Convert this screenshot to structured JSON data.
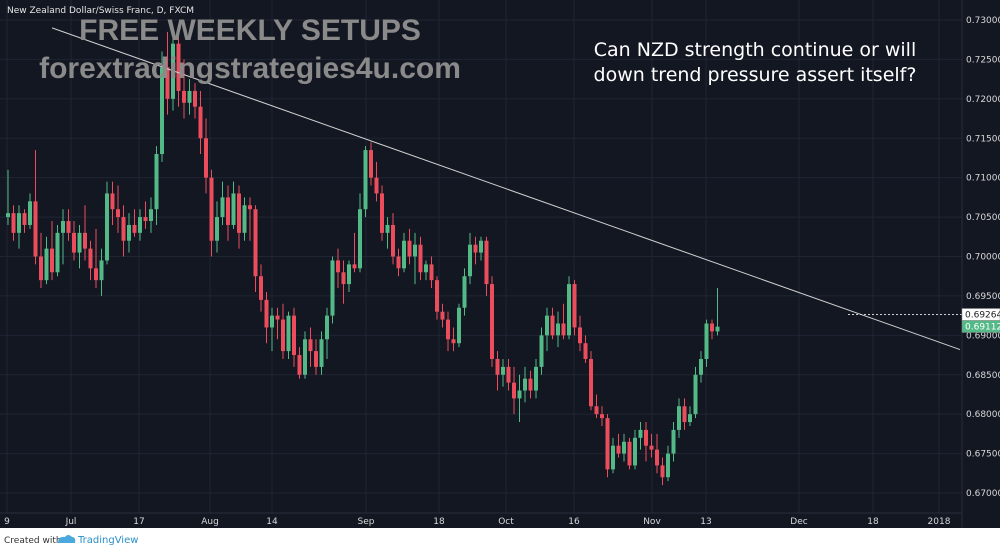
{
  "chart_data": {
    "type": "candlestick",
    "symbol_title": "New Zealand Dollar/Swiss Franc, D, FXCM",
    "ylim": [
      0.668,
      0.7315
    ],
    "y_ticks": [
      "0.73000",
      "0.72500",
      "0.72000",
      "0.71500",
      "0.71000",
      "0.70500",
      "0.70000",
      "0.69500",
      "0.69000",
      "0.68500",
      "0.68000",
      "0.67500",
      "0.67000"
    ],
    "x_ticks": [
      "9",
      "Jul",
      "17",
      "Aug",
      "14",
      "Sep",
      "18",
      "Oct",
      "16",
      "Nov",
      "13",
      "Dec",
      "18",
      "2018"
    ],
    "candles": [
      [
        0.705,
        0.711,
        0.704,
        0.7055
      ],
      [
        0.7055,
        0.7065,
        0.702,
        0.703
      ],
      [
        0.703,
        0.7065,
        0.701,
        0.7055
      ],
      [
        0.7055,
        0.706,
        0.703,
        0.704
      ],
      [
        0.704,
        0.708,
        0.7035,
        0.707
      ],
      [
        0.707,
        0.7135,
        0.699,
        0.7
      ],
      [
        0.7,
        0.703,
        0.696,
        0.697
      ],
      [
        0.697,
        0.7025,
        0.6965,
        0.701
      ],
      [
        0.701,
        0.7045,
        0.697,
        0.698
      ],
      [
        0.698,
        0.704,
        0.6975,
        0.703
      ],
      [
        0.703,
        0.706,
        0.699,
        0.7045
      ],
      [
        0.7045,
        0.706,
        0.702,
        0.703
      ],
      [
        0.703,
        0.7045,
        0.6995,
        0.7005
      ],
      [
        0.7005,
        0.704,
        0.6985,
        0.703
      ],
      [
        0.703,
        0.7065,
        0.6995,
        0.701
      ],
      [
        0.701,
        0.702,
        0.697,
        0.6985
      ],
      [
        0.6985,
        0.7035,
        0.696,
        0.697
      ],
      [
        0.697,
        0.701,
        0.695,
        0.6995
      ],
      [
        0.6995,
        0.7095,
        0.699,
        0.708
      ],
      [
        0.708,
        0.7095,
        0.704,
        0.706
      ],
      [
        0.706,
        0.709,
        0.703,
        0.705
      ],
      [
        0.705,
        0.7065,
        0.7,
        0.702
      ],
      [
        0.702,
        0.7055,
        0.7005,
        0.704
      ],
      [
        0.704,
        0.706,
        0.7025,
        0.703
      ],
      [
        0.703,
        0.706,
        0.702,
        0.705
      ],
      [
        0.705,
        0.707,
        0.7035,
        0.7045
      ],
      [
        0.7045,
        0.7075,
        0.703,
        0.706
      ],
      [
        0.706,
        0.714,
        0.704,
        0.713
      ],
      [
        0.713,
        0.726,
        0.712,
        0.724
      ],
      [
        0.724,
        0.7285,
        0.718,
        0.72
      ],
      [
        0.72,
        0.729,
        0.7185,
        0.727
      ],
      [
        0.727,
        0.7295,
        0.719,
        0.721
      ],
      [
        0.721,
        0.725,
        0.7175,
        0.7195
      ],
      [
        0.7195,
        0.7225,
        0.718,
        0.721
      ],
      [
        0.721,
        0.722,
        0.7175,
        0.719
      ],
      [
        0.719,
        0.721,
        0.713,
        0.715
      ],
      [
        0.715,
        0.7175,
        0.708,
        0.71
      ],
      [
        0.71,
        0.711,
        0.7,
        0.702
      ],
      [
        0.702,
        0.707,
        0.7005,
        0.705
      ],
      [
        0.705,
        0.7095,
        0.704,
        0.7075
      ],
      [
        0.7075,
        0.709,
        0.702,
        0.704
      ],
      [
        0.704,
        0.7095,
        0.7035,
        0.708
      ],
      [
        0.708,
        0.709,
        0.701,
        0.703
      ],
      [
        0.703,
        0.7075,
        0.702,
        0.7065
      ],
      [
        0.7065,
        0.7075,
        0.702,
        0.706
      ],
      [
        0.706,
        0.7065,
        0.6955,
        0.6975
      ],
      [
        0.6975,
        0.699,
        0.693,
        0.6945
      ],
      [
        0.6945,
        0.6955,
        0.689,
        0.691
      ],
      [
        0.691,
        0.6935,
        0.688,
        0.6925
      ],
      [
        0.6925,
        0.6935,
        0.6895,
        0.692
      ],
      [
        0.692,
        0.694,
        0.687,
        0.688
      ],
      [
        0.688,
        0.693,
        0.687,
        0.6925
      ],
      [
        0.6925,
        0.6935,
        0.686,
        0.6875
      ],
      [
        0.6875,
        0.6885,
        0.6845,
        0.685
      ],
      [
        0.685,
        0.6905,
        0.6845,
        0.6895
      ],
      [
        0.6895,
        0.691,
        0.686,
        0.688
      ],
      [
        0.688,
        0.6895,
        0.685,
        0.686
      ],
      [
        0.686,
        0.6905,
        0.685,
        0.6895
      ],
      [
        0.6895,
        0.6935,
        0.687,
        0.6925
      ],
      [
        0.6925,
        0.7,
        0.6915,
        0.6995
      ],
      [
        0.6995,
        0.701,
        0.696,
        0.698
      ],
      [
        0.698,
        0.6995,
        0.694,
        0.6965
      ],
      [
        0.6965,
        0.6995,
        0.6955,
        0.699
      ],
      [
        0.699,
        0.703,
        0.698,
        0.6985
      ],
      [
        0.6985,
        0.708,
        0.698,
        0.706
      ],
      [
        0.706,
        0.714,
        0.705,
        0.7135
      ],
      [
        0.7135,
        0.7145,
        0.709,
        0.71
      ],
      [
        0.71,
        0.712,
        0.707,
        0.708
      ],
      [
        0.708,
        0.709,
        0.702,
        0.703
      ],
      [
        0.703,
        0.705,
        0.701,
        0.704
      ],
      [
        0.704,
        0.7055,
        0.699,
        0.7
      ],
      [
        0.7,
        0.701,
        0.6975,
        0.6985
      ],
      [
        0.6985,
        0.703,
        0.698,
        0.702
      ],
      [
        0.702,
        0.7035,
        0.699,
        0.7
      ],
      [
        0.7,
        0.703,
        0.6965,
        0.7015
      ],
      [
        0.7015,
        0.7025,
        0.697,
        0.698
      ],
      [
        0.698,
        0.6995,
        0.697,
        0.699
      ],
      [
        0.699,
        0.7,
        0.696,
        0.697
      ],
      [
        0.697,
        0.6975,
        0.692,
        0.693
      ],
      [
        0.693,
        0.694,
        0.691,
        0.692
      ],
      [
        0.692,
        0.693,
        0.688,
        0.6895
      ],
      [
        0.6895,
        0.691,
        0.688,
        0.689
      ],
      [
        0.689,
        0.694,
        0.6885,
        0.6935
      ],
      [
        0.6935,
        0.6985,
        0.6925,
        0.6975
      ],
      [
        0.6975,
        0.703,
        0.6965,
        0.7015
      ],
      [
        0.7015,
        0.7025,
        0.699,
        0.7005
      ],
      [
        0.7005,
        0.7025,
        0.6995,
        0.702
      ],
      [
        0.702,
        0.7025,
        0.695,
        0.6965
      ],
      [
        0.6965,
        0.6975,
        0.686,
        0.687
      ],
      [
        0.687,
        0.688,
        0.683,
        0.685
      ],
      [
        0.685,
        0.687,
        0.6835,
        0.686
      ],
      [
        0.686,
        0.687,
        0.683,
        0.684
      ],
      [
        0.684,
        0.686,
        0.68,
        0.682
      ],
      [
        0.682,
        0.685,
        0.679,
        0.683
      ],
      [
        0.683,
        0.686,
        0.6815,
        0.6845
      ],
      [
        0.6845,
        0.6855,
        0.682,
        0.683
      ],
      [
        0.683,
        0.687,
        0.682,
        0.686
      ],
      [
        0.686,
        0.691,
        0.685,
        0.69
      ],
      [
        0.69,
        0.6935,
        0.688,
        0.6925
      ],
      [
        0.6925,
        0.6935,
        0.6895,
        0.69
      ],
      [
        0.69,
        0.693,
        0.6885,
        0.6915
      ],
      [
        0.6915,
        0.694,
        0.6895,
        0.69
      ],
      [
        0.69,
        0.6975,
        0.6895,
        0.6965
      ],
      [
        0.6965,
        0.697,
        0.69,
        0.691
      ],
      [
        0.691,
        0.6925,
        0.688,
        0.689
      ],
      [
        0.689,
        0.69,
        0.6865,
        0.687
      ],
      [
        0.687,
        0.688,
        0.6805,
        0.681
      ],
      [
        0.681,
        0.6825,
        0.6795,
        0.68
      ],
      [
        0.68,
        0.681,
        0.6785,
        0.6795
      ],
      [
        0.6795,
        0.68,
        0.672,
        0.673
      ],
      [
        0.673,
        0.677,
        0.6725,
        0.676
      ],
      [
        0.676,
        0.6775,
        0.6745,
        0.675
      ],
      [
        0.675,
        0.6775,
        0.674,
        0.6765
      ],
      [
        0.6765,
        0.677,
        0.673,
        0.6735
      ],
      [
        0.6735,
        0.678,
        0.673,
        0.677
      ],
      [
        0.677,
        0.679,
        0.6755,
        0.678
      ],
      [
        0.678,
        0.679,
        0.674,
        0.676
      ],
      [
        0.676,
        0.6775,
        0.6745,
        0.6755
      ],
      [
        0.6755,
        0.6775,
        0.6725,
        0.6735
      ],
      [
        0.6735,
        0.6745,
        0.671,
        0.672
      ],
      [
        0.672,
        0.676,
        0.6715,
        0.675
      ],
      [
        0.675,
        0.679,
        0.674,
        0.678
      ],
      [
        0.678,
        0.682,
        0.677,
        0.681
      ],
      [
        0.681,
        0.682,
        0.678,
        0.679
      ],
      [
        0.679,
        0.681,
        0.6785,
        0.68
      ],
      [
        0.68,
        0.686,
        0.6795,
        0.685
      ],
      [
        0.685,
        0.688,
        0.684,
        0.687
      ],
      [
        0.687,
        0.692,
        0.686,
        0.6915
      ],
      [
        0.6915,
        0.692,
        0.6895,
        0.6905
      ],
      [
        0.6905,
        0.696,
        0.69,
        0.6911
      ]
    ],
    "trendline": {
      "start": [
        8,
        0.729
      ],
      "end": [
        184,
        0.6855
      ]
    },
    "price_markers": [
      {
        "label": "0.69264",
        "value": 0.69264,
        "bg": "#ffffff",
        "fg": "#222222"
      },
      {
        "label": "0.69112",
        "value": 0.69112,
        "bg": "#53b987",
        "fg": "#ffffff"
      }
    ],
    "grid": true
  },
  "watermark": {
    "line1": "FREE WEEKLY SETUPS",
    "line2": "forextradingstrategies4u.com"
  },
  "annotation": {
    "line1": "Can NZD strength continue or will",
    "line2": "down trend pressure assert itself?"
  },
  "footer": {
    "created_with": "Created with",
    "brand": "TradingView"
  },
  "colors": {
    "background": "#131722",
    "grid": "#1f2532",
    "up": "#53b987",
    "down": "#eb4d5c",
    "trendline": "#d0d0d0",
    "footer_bg": "#ffffff"
  }
}
